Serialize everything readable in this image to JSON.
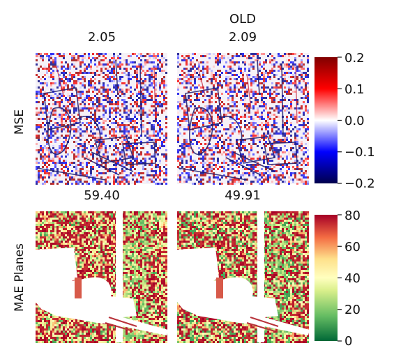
{
  "figure": {
    "column_header": "OLD",
    "row_labels": [
      "MSE",
      "MAE Planes"
    ]
  },
  "chart_data": [
    {
      "type": "heatmap",
      "ylabel": "MSE",
      "panels": [
        {
          "title": "2.05",
          "value": 2.05
        },
        {
          "title": "2.09",
          "value": 2.09,
          "header": "OLD"
        }
      ],
      "colorbar": {
        "cmap": "seismic",
        "colors": [
          "#00004c",
          "#0000ff",
          "#ffffff",
          "#ff0000",
          "#800000"
        ],
        "range": [
          -0.2,
          0.2
        ],
        "ticks": [
          "0.2",
          "0.1",
          "0.0",
          "−0.1",
          "−0.2"
        ],
        "tick_values": [
          0.2,
          0.1,
          0.0,
          -0.1,
          -0.2
        ]
      }
    },
    {
      "type": "heatmap",
      "ylabel": "MAE Planes",
      "panels": [
        {
          "title": "59.40",
          "value": 59.4
        },
        {
          "title": "49.91",
          "value": 49.91
        }
      ],
      "colorbar": {
        "cmap": "RdYlGn_r",
        "colors": [
          "#006837",
          "#66bd63",
          "#d9ef8b",
          "#ffffbf",
          "#fee08b",
          "#f46d43",
          "#a50026"
        ],
        "range": [
          0,
          80
        ],
        "ticks": [
          "80",
          "60",
          "40",
          "20",
          "0"
        ],
        "tick_values": [
          80,
          60,
          40,
          20,
          0
        ]
      }
    }
  ]
}
